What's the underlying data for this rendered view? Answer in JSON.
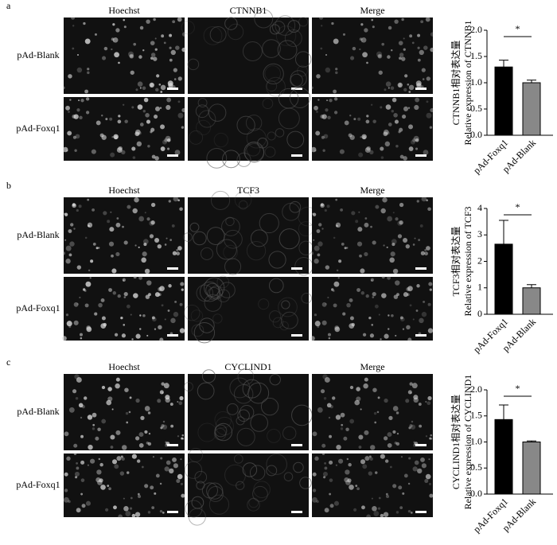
{
  "panels": [
    {
      "label": "a",
      "columns": [
        "Hoechst",
        "CTNNB1",
        "Merge"
      ],
      "rows": [
        "pAd-Blank",
        "pAd-Foxq1"
      ]
    },
    {
      "label": "b",
      "columns": [
        "Hoechst",
        "TCF3",
        "Merge"
      ],
      "rows": [
        "pAd-Blank",
        "pAd-Foxq1"
      ]
    },
    {
      "label": "c",
      "columns": [
        "Hoechst",
        "CYCLIND1",
        "Merge"
      ],
      "rows": [
        "pAd-Blank",
        "pAd-Foxq1"
      ]
    }
  ],
  "chart_data": [
    {
      "type": "bar",
      "y_label": [
        "CTNNB1相对表达量",
        "Relative expression of CTNNB1"
      ],
      "categories": [
        "pAd-Foxq1",
        "pAd-Blank"
      ],
      "values": [
        1.3,
        1.0
      ],
      "errors": [
        0.13,
        0.05
      ],
      "colors": [
        "#000000",
        "#888888"
      ],
      "significance": "*",
      "ylim": [
        0,
        2
      ],
      "yticks": [
        {
          "value": 0,
          "label": "0.0"
        },
        {
          "value": 0.5,
          "label": "0.5"
        },
        {
          "value": 1,
          "label": "1.0"
        },
        {
          "value": 1.5,
          "label": "1.5"
        },
        {
          "value": 2,
          "label": "2.0"
        }
      ]
    },
    {
      "type": "bar",
      "y_label": [
        "TCF3相对表达量",
        "Relative expression of TCF3"
      ],
      "categories": [
        "pAd-Foxq1",
        "pAd-Blank"
      ],
      "values": [
        2.65,
        1.0
      ],
      "errors": [
        0.9,
        0.12
      ],
      "colors": [
        "#000000",
        "#888888"
      ],
      "significance": "*",
      "ylim": [
        0,
        4
      ],
      "yticks": [
        0,
        1,
        2,
        3,
        4
      ]
    },
    {
      "type": "bar",
      "y_label": [
        "CYCLIND1相对表达量",
        "Relative expression of CYCLIND1"
      ],
      "categories": [
        "pAd-Foxq1",
        "pAd-Blank"
      ],
      "values": [
        1.43,
        1.0
      ],
      "errors": [
        0.28,
        0.02
      ],
      "colors": [
        "#000000",
        "#888888"
      ],
      "significance": "*",
      "ylim": [
        0,
        2
      ],
      "yticks": [
        {
          "value": 0,
          "label": "0.0"
        },
        {
          "value": 0.5,
          "label": "0.5"
        },
        {
          "value": 1,
          "label": "1.0"
        },
        {
          "value": 1.5,
          "label": "1.5"
        },
        {
          "value": 2,
          "label": "2.0"
        }
      ]
    }
  ]
}
